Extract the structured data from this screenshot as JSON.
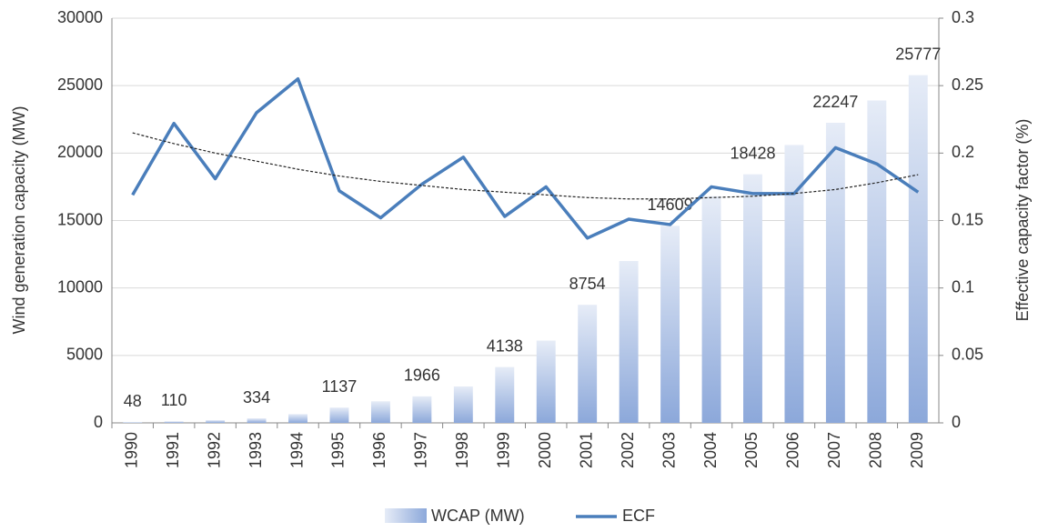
{
  "chart_data": {
    "type": "bar-line",
    "categories": [
      "1990",
      "1991",
      "1992",
      "1993",
      "1994",
      "1995",
      "1996",
      "1997",
      "1998",
      "1999",
      "2000",
      "2001",
      "2002",
      "2003",
      "2004",
      "2005",
      "2006",
      "2007",
      "2008",
      "2009"
    ],
    "y_label": "Wind generation capacity (MW)",
    "y2_label": "Effective capacity factor (%)",
    "ylim": [
      0,
      30000
    ],
    "yticks": [
      0,
      5000,
      10000,
      15000,
      20000,
      25000,
      30000
    ],
    "y2lim": [
      0,
      0.3
    ],
    "y2ticks": [
      0,
      0.05,
      0.1,
      0.15,
      0.2,
      0.25,
      0.3
    ],
    "grid": true,
    "legend": "bottom",
    "series": [
      {
        "name": "WCAP (MW)",
        "type": "bar",
        "gradient": [
          "#e6ecf7",
          "#8ca8da"
        ],
        "values": [
          48,
          110,
          200,
          334,
          650,
          1137,
          1600,
          1966,
          2700,
          4138,
          6100,
          8754,
          12000,
          14609,
          16800,
          18428,
          20600,
          22247,
          23900,
          25777
        ],
        "value_labels": [
          "48",
          "110",
          null,
          "334",
          null,
          "1137",
          null,
          "1966",
          null,
          "4138",
          null,
          "8754",
          null,
          "14609",
          null,
          "18428",
          null,
          "22247",
          null,
          "25777"
        ]
      },
      {
        "name": "ECF",
        "type": "line",
        "axis": "y2",
        "color": "#4a7ebb",
        "values": [
          0.169,
          0.222,
          0.181,
          0.23,
          0.255,
          0.172,
          0.152,
          0.177,
          0.197,
          0.153,
          0.175,
          0.137,
          0.151,
          0.147,
          0.175,
          0.17,
          0.17,
          0.204,
          0.192,
          0.171
        ]
      }
    ],
    "trendline": {
      "axis": "y2",
      "color": "#222",
      "dashed": true,
      "values": [
        0.215,
        0.207,
        0.2,
        0.194,
        0.188,
        0.183,
        0.179,
        0.176,
        0.173,
        0.171,
        0.169,
        0.167,
        0.166,
        0.166,
        0.167,
        0.168,
        0.17,
        0.173,
        0.178,
        0.184
      ]
    }
  }
}
